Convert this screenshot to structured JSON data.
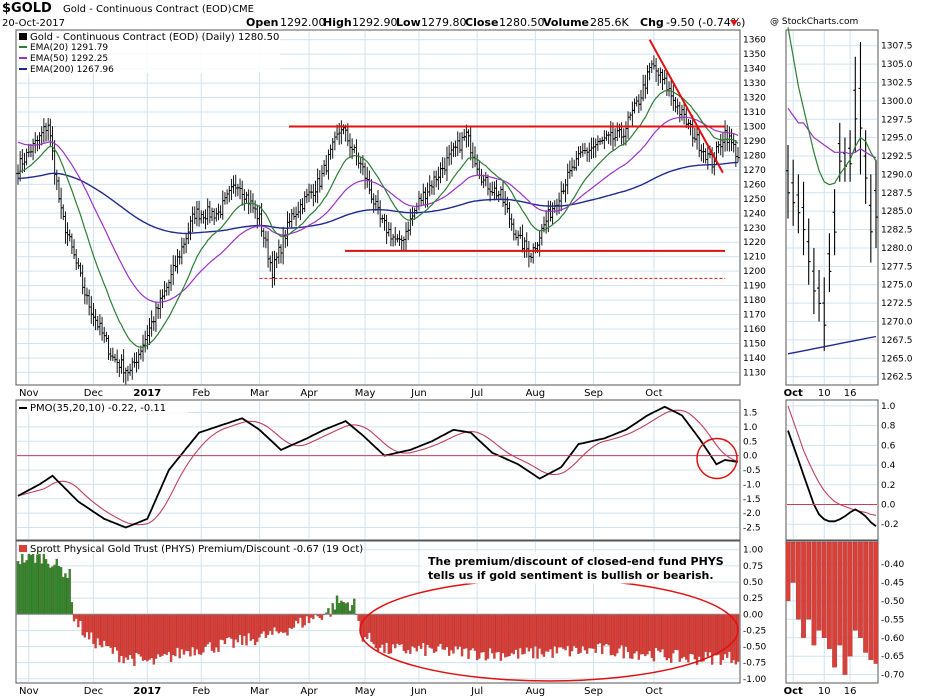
{
  "header": {
    "symbol": "$GOLD",
    "name": "Gold - Continuous Contract (EOD)",
    "exchange": "CME",
    "date": "20-Oct-2017",
    "open_label": "Open",
    "open": "1292.00",
    "high_label": "High",
    "high": "1292.90",
    "low_label": "Low",
    "low": "1279.80",
    "close_label": "Close",
    "close": "1280.50",
    "volume_label": "Volume",
    "volume": "285.6K",
    "chg_label": "Chg",
    "chg": "-9.50 (-0.74%)",
    "watermark": "@ StockCharts.com"
  },
  "colors": {
    "price_bar": "#000000",
    "ema20": "#2e7d32",
    "ema50": "#9a33c8",
    "ema200": "#1f2a8c",
    "annotation": "#e01010",
    "pmo": "#000000",
    "pmo_signal": "#c0405a",
    "premium_pos": "#2e8b2e",
    "premium_neg": "#d8403a",
    "grid": "#cfe3f2"
  },
  "legend": {
    "main_title": "Gold - Continuous Contract (EOD) (Daily) 1280.50",
    "ema20": "EMA(20) 1291.79",
    "ema50": "EMA(50) 1292.25",
    "ema200": "EMA(200) 1267.96",
    "pmo": "PMO(35,20,10) -0.22, -0.11",
    "premium": "Sprott Physical Gold Trust (PHYS) Premium/Discount -0.67 (19 Oct)"
  },
  "annotation_box": {
    "line1": "The premium/discount of closed-end fund PHYS",
    "line2": "tells us if gold sentiment is bullish or bearish."
  },
  "chart_data": [
    {
      "type": "bar",
      "panel": "price",
      "title": "Gold - Continuous Contract (EOD) (Daily) 1280.50",
      "x_months": [
        "Nov",
        "Dec",
        "2017",
        "Feb",
        "Mar",
        "Apr",
        "May",
        "Jun",
        "Jul",
        "Aug",
        "Sep",
        "Oct"
      ],
      "y_ticks": [
        1130,
        1140,
        1150,
        1160,
        1170,
        1180,
        1190,
        1200,
        1210,
        1220,
        1230,
        1240,
        1250,
        1260,
        1270,
        1280,
        1290,
        1300,
        1310,
        1320,
        1330,
        1340,
        1350,
        1360
      ],
      "ylim": [
        1122,
        1366
      ],
      "close_anchors": [
        [
          0,
          1272
        ],
        [
          10,
          1292
        ],
        [
          14,
          1302
        ],
        [
          20,
          1240
        ],
        [
          32,
          1180
        ],
        [
          44,
          1140
        ],
        [
          52,
          1130
        ],
        [
          58,
          1150
        ],
        [
          70,
          1192
        ],
        [
          82,
          1240
        ],
        [
          93,
          1240
        ],
        [
          102,
          1262
        ],
        [
          112,
          1236
        ],
        [
          118,
          1200
        ],
        [
          127,
          1238
        ],
        [
          140,
          1262
        ],
        [
          150,
          1300
        ],
        [
          160,
          1270
        ],
        [
          168,
          1235
        ],
        [
          177,
          1218
        ],
        [
          186,
          1248
        ],
        [
          200,
          1278
        ],
        [
          208,
          1294
        ],
        [
          216,
          1262
        ],
        [
          224,
          1252
        ],
        [
          232,
          1222
        ],
        [
          238,
          1212
        ],
        [
          246,
          1238
        ],
        [
          254,
          1262
        ],
        [
          262,
          1282
        ],
        [
          272,
          1290
        ],
        [
          280,
          1294
        ],
        [
          288,
          1318
        ],
        [
          294,
          1342
        ],
        [
          300,
          1330
        ],
        [
          308,
          1308
        ],
        [
          316,
          1288
        ],
        [
          322,
          1275
        ],
        [
          328,
          1296
        ],
        [
          334,
          1280
        ]
      ],
      "series": [
        {
          "name": "EMA(20)",
          "last": 1291.79
        },
        {
          "name": "EMA(50)",
          "last": 1292.25
        },
        {
          "name": "EMA(200)",
          "last": 1267.96
        }
      ],
      "annotations": [
        {
          "type": "horizontal",
          "value": 1300,
          "from_month": "Apr",
          "to_month": "Oct"
        },
        {
          "type": "horizontal",
          "value": 1214,
          "from_month": "May",
          "to_month": "Oct"
        },
        {
          "type": "horizontal_dashed",
          "value": 1195,
          "from_month": "Mar",
          "to_month": "Oct"
        },
        {
          "type": "trendline",
          "from": 1360,
          "to": 1268,
          "from_month": "Sep",
          "to_month": "Oct"
        }
      ]
    },
    {
      "type": "bar",
      "panel": "price-zoom",
      "x_ticks": [
        "Oct",
        "10",
        "16"
      ],
      "y_ticks": [
        1262.5,
        1265.0,
        1267.5,
        1270.0,
        1272.5,
        1275.0,
        1277.5,
        1280.0,
        1282.5,
        1285.0,
        1287.5,
        1290.0,
        1292.5,
        1295.0,
        1297.5,
        1300.0,
        1302.5,
        1305.0,
        1307.5
      ],
      "ylim": [
        1261.5,
        1309.5
      ],
      "bars_hl": [
        [
          1294,
          1284
        ],
        [
          1292,
          1283
        ],
        [
          1290,
          1282
        ],
        [
          1289,
          1279
        ],
        [
          1284,
          1275
        ],
        [
          1280,
          1271
        ],
        [
          1277,
          1270
        ],
        [
          1276,
          1266
        ],
        [
          1282,
          1274
        ],
        [
          1288,
          1279
        ],
        [
          1297,
          1289
        ],
        [
          1295,
          1289
        ],
        [
          1296,
          1289
        ],
        [
          1306,
          1293
        ],
        [
          1308,
          1290
        ],
        [
          1296,
          1286
        ],
        [
          1290,
          1278
        ],
        [
          1292,
          1280
        ]
      ],
      "series": [
        {
          "name": "EMA(200)",
          "from": 1265.6,
          "to": 1267.96
        }
      ]
    },
    {
      "type": "line",
      "panel": "pmo",
      "title": "PMO(35,20,10) -0.22, -0.11",
      "y_ticks": [
        -2.5,
        -2.0,
        -1.5,
        -1.0,
        -0.5,
        0.0,
        0.5,
        1.0,
        1.5
      ],
      "ylim": [
        -2.9,
        1.9
      ],
      "pmo_anchors": [
        [
          0,
          -1.4
        ],
        [
          10,
          -1.0
        ],
        [
          16,
          -0.7
        ],
        [
          28,
          -1.6
        ],
        [
          40,
          -2.2
        ],
        [
          50,
          -2.5
        ],
        [
          60,
          -2.2
        ],
        [
          70,
          -0.5
        ],
        [
          84,
          0.8
        ],
        [
          96,
          1.1
        ],
        [
          104,
          1.3
        ],
        [
          112,
          0.9
        ],
        [
          122,
          0.2
        ],
        [
          134,
          0.6
        ],
        [
          142,
          0.9
        ],
        [
          152,
          1.2
        ],
        [
          160,
          0.7
        ],
        [
          170,
          0.0
        ],
        [
          182,
          0.2
        ],
        [
          192,
          0.5
        ],
        [
          202,
          0.9
        ],
        [
          210,
          0.8
        ],
        [
          220,
          0.1
        ],
        [
          232,
          -0.3
        ],
        [
          242,
          -0.8
        ],
        [
          252,
          -0.4
        ],
        [
          260,
          0.4
        ],
        [
          272,
          0.6
        ],
        [
          282,
          0.9
        ],
        [
          292,
          1.4
        ],
        [
          300,
          1.7
        ],
        [
          308,
          1.4
        ],
        [
          316,
          0.6
        ],
        [
          324,
          -0.3
        ],
        [
          328,
          -0.15
        ],
        [
          334,
          -0.22
        ]
      ],
      "signal_lag": 6,
      "series": [
        {
          "name": "PMO(35,20,10)",
          "last": -0.22
        },
        {
          "name": "signal",
          "last": -0.11
        }
      ],
      "zoom_y_ticks": [
        -0.2,
        0.0,
        0.2,
        0.4,
        0.6,
        0.8,
        1.0
      ],
      "zoom_ylim": [
        -0.35,
        1.05
      ],
      "zoom_pmo": [
        0.75,
        0.6,
        0.45,
        0.3,
        0.15,
        0.0,
        -0.1,
        -0.15,
        -0.17,
        -0.17,
        -0.15,
        -0.12,
        -0.08,
        -0.05,
        -0.08,
        -0.12,
        -0.18,
        -0.22
      ],
      "zoom_signal": [
        1.0,
        0.85,
        0.7,
        0.55,
        0.43,
        0.32,
        0.22,
        0.14,
        0.08,
        0.03,
        0.0,
        -0.02,
        -0.04,
        -0.06,
        -0.07,
        -0.08,
        -0.1,
        -0.11
      ]
    },
    {
      "type": "bar",
      "panel": "premium",
      "title": "Sprott Physical Gold Trust (PHYS) Premium/Discount -0.67 (19 Oct)",
      "y_ticks": [
        -1.0,
        -0.75,
        -0.5,
        -0.25,
        0.0,
        0.25,
        0.5,
        0.75,
        1.0
      ],
      "ylim": [
        -1.05,
        1.12
      ],
      "segments": [
        [
          0,
          0.85
        ],
        [
          12,
          0.9
        ],
        [
          24,
          0.6
        ],
        [
          26,
          -0.05
        ],
        [
          32,
          -0.35
        ],
        [
          48,
          -0.65
        ],
        [
          62,
          -0.75
        ],
        [
          80,
          -0.55
        ],
        [
          100,
          -0.45
        ],
        [
          120,
          -0.3
        ],
        [
          130,
          -0.15
        ],
        [
          145,
          0.05
        ],
        [
          148,
          0.2
        ],
        [
          156,
          0.15
        ],
        [
          159,
          -0.3
        ],
        [
          170,
          -0.55
        ],
        [
          190,
          -0.55
        ],
        [
          210,
          -0.6
        ],
        [
          230,
          -0.62
        ],
        [
          250,
          -0.58
        ],
        [
          270,
          -0.55
        ],
        [
          290,
          -0.6
        ],
        [
          310,
          -0.68
        ],
        [
          334,
          -0.67
        ]
      ],
      "zoom_y_ticks": [
        -0.7,
        -0.65,
        -0.6,
        -0.55,
        -0.5,
        -0.45,
        -0.4
      ],
      "zoom_ylim": [
        -0.72,
        -0.34
      ],
      "zoom_values": [
        -0.5,
        -0.45,
        -0.55,
        -0.6,
        -0.55,
        -0.62,
        -0.58,
        -0.6,
        -0.63,
        -0.68,
        -0.62,
        -0.7,
        -0.65,
        -0.58,
        -0.6,
        -0.64,
        -0.66,
        -0.67
      ]
    }
  ]
}
